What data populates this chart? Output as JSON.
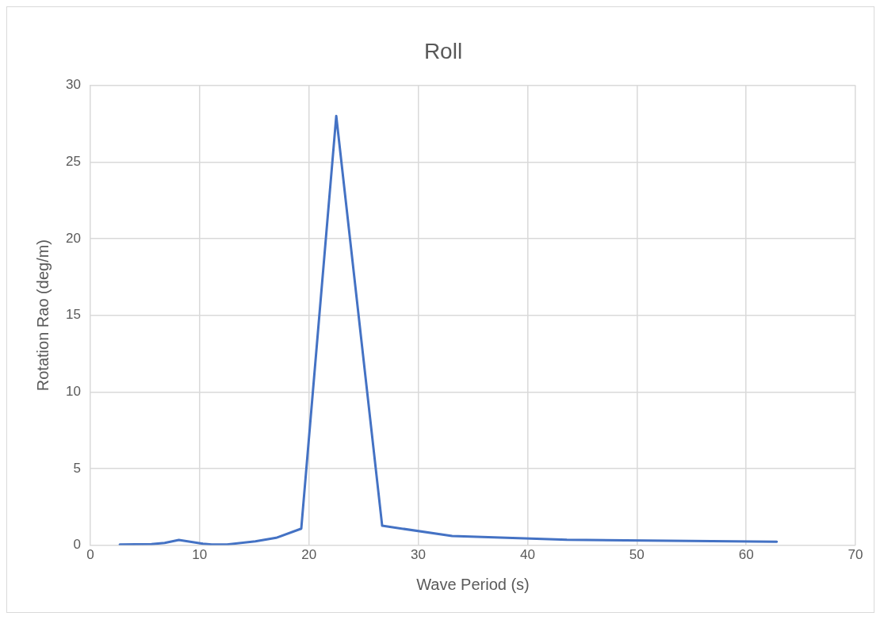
{
  "chart_data": {
    "type": "line",
    "title": "Roll",
    "xlabel": "Wave Period (s)",
    "ylabel": "Rotation Rao (deg/m)",
    "x": [
      2.7,
      5.6,
      6.8,
      8.1,
      10.3,
      11.1,
      12.5,
      15.1,
      17.0,
      19.3,
      22.5,
      26.7,
      33.1,
      43.6,
      62.8
    ],
    "series": [
      {
        "color": "#4472c4",
        "values": [
          0.05,
          0.07,
          0.15,
          0.34,
          0.1,
          0.05,
          0.05,
          0.25,
          0.48,
          1.08,
          28.0,
          1.27,
          0.6,
          0.35,
          0.23
        ]
      }
    ],
    "xlim": [
      0,
      70
    ],
    "xticks": [
      0,
      10,
      20,
      30,
      40,
      50,
      60,
      70
    ],
    "ylim": [
      0,
      30
    ],
    "yticks": [
      0,
      5,
      10,
      15,
      20,
      25,
      30
    ],
    "grid": true,
    "legend": false,
    "marker": "none",
    "line_style": "solid"
  }
}
